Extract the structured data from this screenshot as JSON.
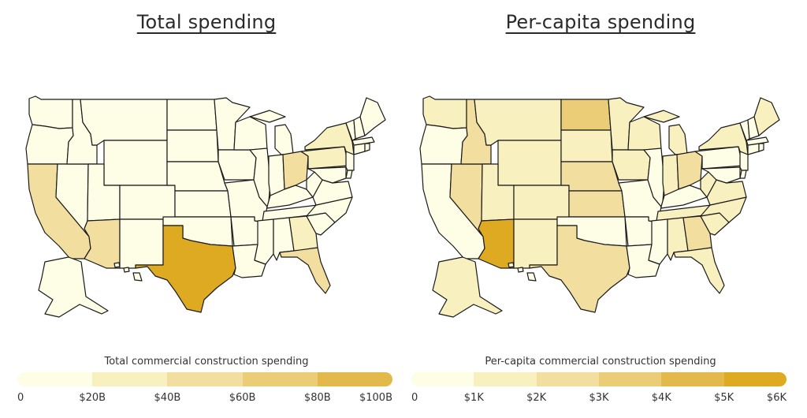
{
  "colors": {
    "c0": "#fefde6",
    "c1": "#f9f0c0",
    "c2": "#f2df9f",
    "c3": "#ebcc77",
    "c4": "#e4b94c",
    "c5": "#ddaa22",
    "border": "#1a1a1a"
  },
  "panels": [
    {
      "title": "Total spending",
      "legend_title": "Total commercial construction spending",
      "legend_ticks": [
        "0",
        "$20B",
        "$40B",
        "$60B",
        "$80B",
        "$100B"
      ],
      "legend_colors": [
        "#fefde6",
        "#f9f0c0",
        "#f2df9f",
        "#ebcc77",
        "#e4b94c"
      ],
      "fills": {
        "default": "#fefde6",
        "TX": "#ddaa22",
        "CA": "#f2df9f",
        "AZ": "#f2df9f",
        "FL": "#f2df9f",
        "GA": "#f9f0c0",
        "OH": "#f2df9f",
        "NY": "#f9f0c0",
        "PA": "#f9f0c0"
      }
    },
    {
      "title": "Per-capita spending",
      "legend_title": "Per-capita commercial construction spending",
      "legend_ticks": [
        "0",
        "$1K",
        "$2K",
        "$3K",
        "$4K",
        "$5K",
        "$6K"
      ],
      "legend_colors": [
        "#fefde6",
        "#f9f0c0",
        "#f2df9f",
        "#ebcc77",
        "#e4b94c",
        "#ddaa22"
      ],
      "fills": {
        "default": "#fefde6",
        "AZ": "#ddaa22",
        "ND": "#ebcc77",
        "NV": "#f2df9f",
        "ID": "#f2df9f",
        "NE": "#f2df9f",
        "KS": "#f2df9f",
        "GA": "#f2df9f",
        "OH": "#f2df9f",
        "TX": "#f2df9f",
        "MT": "#f9f0c0",
        "WA": "#f9f0c0",
        "WY": "#f9f0c0",
        "SD": "#f9f0c0",
        "UT": "#f9f0c0",
        "CO": "#f9f0c0",
        "NM": "#f9f0c0",
        "MN": "#f9f0c0",
        "IA": "#f9f0c0",
        "WI": "#f9f0c0",
        "MI": "#f9f0c0",
        "IN": "#f9f0c0",
        "TN": "#f9f0c0",
        "NC": "#f9f0c0",
        "SC": "#f9f0c0",
        "FL": "#f9f0c0",
        "AL": "#f9f0c0",
        "NY": "#f9f0c0",
        "WV": "#f9f0c0",
        "VA": "#f9f0c0",
        "ME": "#f9f0c0",
        "AK": "#f9f0c0"
      }
    }
  ]
}
